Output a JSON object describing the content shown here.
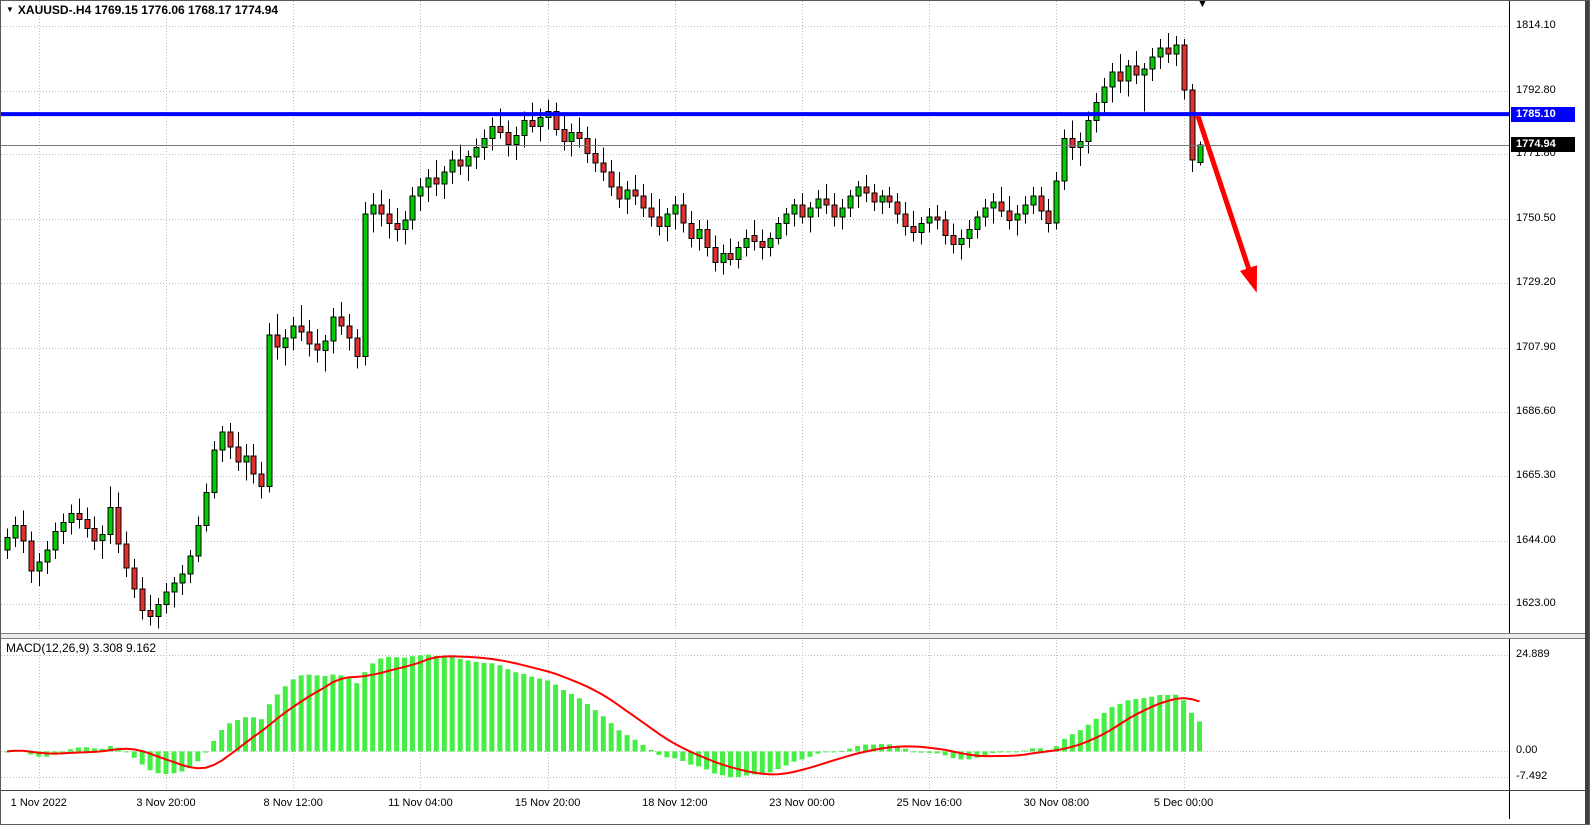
{
  "window": {
    "title": "XAUUSD-.H4 1769.15 1776.06 1768.17 1774.94",
    "symbol": "XAUUSD-",
    "period": "H4"
  },
  "colors": {
    "background": "#FFFFFF",
    "grid": "#BDBDBD",
    "candle_up": "#00CC00",
    "candle_down": "#E03030",
    "candle_border": "#000000",
    "macd_histogram": "#44EE44",
    "macd_signal": "#FF0000",
    "resistance_line": "#0000FE",
    "bid_line": "#777777",
    "arrow": "#FF0000",
    "badge_resistance_bg": "#0000FE",
    "badge_bid_bg": "#000000"
  },
  "chart_data": {
    "type": "candlestick",
    "title": "XAUUSD- H4 candlestick chart with MACD indicator",
    "symbol": "XAUUSD-",
    "timeframe": "H4",
    "last_candle_ohlc": {
      "open": 1769.15,
      "high": 1776.06,
      "low": 1768.17,
      "close": 1774.94
    },
    "price_axis": {
      "range": [
        1613.5,
        1822.5
      ],
      "ticks": [
        "1814.10",
        "1792.80",
        "1771.80",
        "1750.50",
        "1729.20",
        "1707.90",
        "1686.60",
        "1665.30",
        "1644.00",
        "1623.00"
      ]
    },
    "time_axis": {
      "ticks": [
        {
          "index": 4,
          "label": "1 Nov 2022"
        },
        {
          "index": 20,
          "label": "3 Nov 20:00"
        },
        {
          "index": 36,
          "label": "8 Nov 12:00"
        },
        {
          "index": 52,
          "label": "11 Nov 04:00"
        },
        {
          "index": 68,
          "label": "15 Nov 20:00"
        },
        {
          "index": 84,
          "label": "18 Nov 12:00"
        },
        {
          "index": 100,
          "label": "23 Nov 00:00"
        },
        {
          "index": 116,
          "label": "25 Nov 16:00"
        },
        {
          "index": 132,
          "label": "30 Nov 08:00"
        },
        {
          "index": 148,
          "label": "5 Dec 00:00"
        }
      ]
    },
    "overlays": {
      "resistance_line": {
        "price": 1785.1,
        "label": "1785.10"
      },
      "bid_line": {
        "price": 1774.94,
        "label": "1774.94"
      },
      "arrow": {
        "from": {
          "index": 149.8,
          "price": 1784.5
        },
        "to": {
          "index": 157.2,
          "price": 1726
        }
      }
    },
    "macd": {
      "label": "MACD(12,26,9) 3.308 9.162",
      "fast": 12,
      "slow": 26,
      "signal_period": 9,
      "value": 3.308,
      "signal_value": 9.162,
      "axis_ticks": {
        "max": "24.889",
        "zero": "0.00",
        "min": "-7.492"
      }
    },
    "candles": [
      [
        1641,
        1648,
        1638,
        1645
      ],
      [
        1645,
        1652,
        1642,
        1649
      ],
      [
        1649,
        1654,
        1640,
        1644
      ],
      [
        1644,
        1647,
        1630,
        1634
      ],
      [
        1634,
        1640,
        1629,
        1637
      ],
      [
        1637,
        1644,
        1633,
        1641
      ],
      [
        1641,
        1650,
        1638,
        1647
      ],
      [
        1647,
        1653,
        1643,
        1650
      ],
      [
        1650,
        1656,
        1646,
        1653
      ],
      [
        1653,
        1658,
        1648,
        1651
      ],
      [
        1651,
        1655,
        1645,
        1648
      ],
      [
        1648,
        1652,
        1641,
        1644
      ],
      [
        1644,
        1649,
        1638,
        1646
      ],
      [
        1646,
        1662,
        1643,
        1655
      ],
      [
        1655,
        1660,
        1640,
        1643
      ],
      [
        1643,
        1647,
        1632,
        1635
      ],
      [
        1635,
        1638,
        1625,
        1628
      ],
      [
        1628,
        1632,
        1618,
        1621
      ],
      [
        1621,
        1626,
        1616,
        1619
      ],
      [
        1619,
        1625,
        1615,
        1623
      ],
      [
        1623,
        1630,
        1620,
        1627
      ],
      [
        1627,
        1632,
        1622,
        1630
      ],
      [
        1630,
        1636,
        1626,
        1633
      ],
      [
        1633,
        1641,
        1630,
        1639
      ],
      [
        1639,
        1652,
        1637,
        1649
      ],
      [
        1649,
        1663,
        1647,
        1660
      ],
      [
        1660,
        1677,
        1658,
        1674
      ],
      [
        1674,
        1682,
        1670,
        1680
      ],
      [
        1680,
        1683,
        1671,
        1675
      ],
      [
        1675,
        1680,
        1667,
        1670
      ],
      [
        1670,
        1676,
        1664,
        1672
      ],
      [
        1672,
        1676,
        1663,
        1666
      ],
      [
        1666,
        1670,
        1658,
        1662
      ],
      [
        1662,
        1716,
        1660,
        1712
      ],
      [
        1712,
        1719,
        1704,
        1708
      ],
      [
        1708,
        1714,
        1702,
        1711
      ],
      [
        1711,
        1718,
        1707,
        1715
      ],
      [
        1715,
        1722,
        1710,
        1713
      ],
      [
        1713,
        1717,
        1705,
        1709
      ],
      [
        1709,
        1714,
        1703,
        1707
      ],
      [
        1707,
        1712,
        1700,
        1710
      ],
      [
        1710,
        1721,
        1706,
        1718
      ],
      [
        1718,
        1723,
        1712,
        1715
      ],
      [
        1715,
        1719,
        1707,
        1711
      ],
      [
        1711,
        1714,
        1701,
        1705
      ],
      [
        1705,
        1756,
        1702,
        1752
      ],
      [
        1752,
        1759,
        1746,
        1755
      ],
      [
        1755,
        1760,
        1748,
        1752
      ],
      [
        1752,
        1757,
        1744,
        1749
      ],
      [
        1749,
        1754,
        1743,
        1747
      ],
      [
        1747,
        1753,
        1742,
        1750
      ],
      [
        1750,
        1761,
        1747,
        1758
      ],
      [
        1758,
        1764,
        1753,
        1761
      ],
      [
        1761,
        1767,
        1756,
        1764
      ],
      [
        1764,
        1770,
        1758,
        1762
      ],
      [
        1762,
        1768,
        1757,
        1766
      ],
      [
        1766,
        1773,
        1762,
        1770
      ],
      [
        1770,
        1775,
        1765,
        1768
      ],
      [
        1768,
        1773,
        1763,
        1771
      ],
      [
        1771,
        1777,
        1767,
        1774
      ],
      [
        1774,
        1780,
        1770,
        1777
      ],
      [
        1777,
        1784,
        1773,
        1781
      ],
      [
        1781,
        1787,
        1777,
        1779
      ],
      [
        1779,
        1783,
        1771,
        1775
      ],
      [
        1775,
        1781,
        1770,
        1778
      ],
      [
        1778,
        1786,
        1774,
        1783
      ],
      [
        1783,
        1789,
        1779,
        1781
      ],
      [
        1781,
        1787,
        1776,
        1784
      ],
      [
        1784,
        1790,
        1780,
        1786
      ],
      [
        1786,
        1789,
        1778,
        1780
      ],
      [
        1780,
        1785,
        1773,
        1776
      ],
      [
        1776,
        1782,
        1771,
        1779
      ],
      [
        1779,
        1784,
        1774,
        1777
      ],
      [
        1777,
        1781,
        1769,
        1772
      ],
      [
        1772,
        1777,
        1766,
        1769
      ],
      [
        1769,
        1774,
        1763,
        1766
      ],
      [
        1766,
        1770,
        1758,
        1761
      ],
      [
        1761,
        1766,
        1754,
        1757
      ],
      [
        1757,
        1763,
        1752,
        1760
      ],
      [
        1760,
        1765,
        1755,
        1758
      ],
      [
        1758,
        1762,
        1751,
        1754
      ],
      [
        1754,
        1759,
        1748,
        1751
      ],
      [
        1751,
        1757,
        1745,
        1748
      ],
      [
        1748,
        1754,
        1743,
        1752
      ],
      [
        1752,
        1758,
        1747,
        1755
      ],
      [
        1755,
        1759,
        1746,
        1749
      ],
      [
        1749,
        1753,
        1741,
        1744
      ],
      [
        1744,
        1750,
        1740,
        1747
      ],
      [
        1747,
        1750,
        1738,
        1741
      ],
      [
        1741,
        1745,
        1733,
        1736
      ],
      [
        1736,
        1742,
        1732,
        1739
      ],
      [
        1739,
        1744,
        1735,
        1737
      ],
      [
        1737,
        1743,
        1734,
        1741
      ],
      [
        1741,
        1747,
        1738,
        1744
      ],
      [
        1745,
        1750,
        1740,
        1743
      ],
      [
        1743,
        1747,
        1737,
        1741
      ],
      [
        1741,
        1746,
        1738,
        1744
      ],
      [
        1744,
        1751,
        1742,
        1749
      ],
      [
        1749,
        1754,
        1745,
        1752
      ],
      [
        1752,
        1757,
        1748,
        1755
      ],
      [
        1755,
        1759,
        1749,
        1751
      ],
      [
        1751,
        1756,
        1746,
        1754
      ],
      [
        1754,
        1760,
        1751,
        1757
      ],
      [
        1757,
        1762,
        1752,
        1755
      ],
      [
        1755,
        1759,
        1748,
        1751
      ],
      [
        1751,
        1757,
        1747,
        1754
      ],
      [
        1754,
        1760,
        1751,
        1758
      ],
      [
        1758,
        1763,
        1754,
        1761
      ],
      [
        1761,
        1765,
        1756,
        1759
      ],
      [
        1759,
        1762,
        1753,
        1756
      ],
      [
        1756,
        1760,
        1752,
        1758
      ],
      [
        1758,
        1761,
        1754,
        1756
      ],
      [
        1756,
        1759,
        1749,
        1752
      ],
      [
        1752,
        1756,
        1745,
        1748
      ],
      [
        1748,
        1753,
        1743,
        1746
      ],
      [
        1746,
        1751,
        1742,
        1749
      ],
      [
        1749,
        1754,
        1746,
        1751
      ],
      [
        1751,
        1755,
        1747,
        1750
      ],
      [
        1750,
        1753,
        1742,
        1745
      ],
      [
        1745,
        1749,
        1739,
        1742
      ],
      [
        1742,
        1747,
        1737,
        1744
      ],
      [
        1744,
        1750,
        1741,
        1747
      ],
      [
        1747,
        1753,
        1744,
        1751
      ],
      [
        1751,
        1757,
        1748,
        1754
      ],
      [
        1754,
        1759,
        1749,
        1756
      ],
      [
        1756,
        1761,
        1751,
        1753
      ],
      [
        1753,
        1758,
        1747,
        1750
      ],
      [
        1750,
        1755,
        1745,
        1752
      ],
      [
        1752,
        1758,
        1749,
        1755
      ],
      [
        1755,
        1761,
        1752,
        1758
      ],
      [
        1758,
        1761,
        1750,
        1753
      ],
      [
        1753,
        1757,
        1746,
        1749
      ],
      [
        1749,
        1766,
        1747,
        1763
      ],
      [
        1763,
        1780,
        1760,
        1777
      ],
      [
        1777,
        1783,
        1770,
        1774
      ],
      [
        1774,
        1779,
        1768,
        1776
      ],
      [
        1776,
        1786,
        1772,
        1783
      ],
      [
        1783,
        1792,
        1779,
        1789
      ],
      [
        1789,
        1797,
        1785,
        1794
      ],
      [
        1794,
        1802,
        1789,
        1799
      ],
      [
        1799,
        1805,
        1792,
        1796
      ],
      [
        1796,
        1803,
        1791,
        1801
      ],
      [
        1801,
        1806,
        1795,
        1798
      ],
      [
        1798,
        1802,
        1786,
        1800
      ],
      [
        1800,
        1807,
        1796,
        1804
      ],
      [
        1804,
        1810,
        1800,
        1807
      ],
      [
        1807,
        1812,
        1802,
        1805
      ],
      [
        1805,
        1811,
        1801,
        1808
      ],
      [
        1808,
        1810,
        1790,
        1793
      ],
      [
        1793,
        1795,
        1766,
        1770
      ],
      [
        1769.15,
        1776.06,
        1768.17,
        1774.94
      ]
    ]
  }
}
